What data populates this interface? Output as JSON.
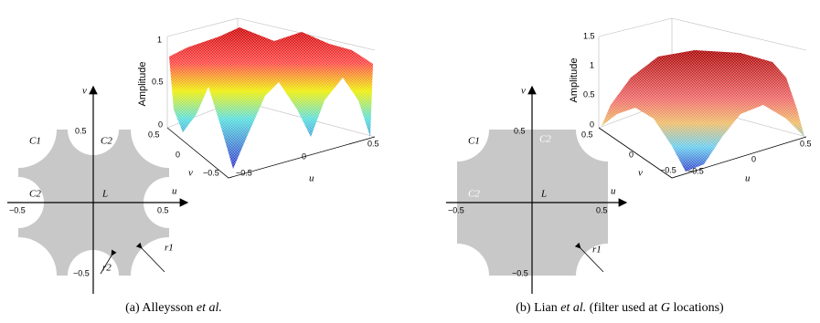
{
  "panels": [
    {
      "caption": {
        "prefix": "(a) Alleysson ",
        "italic": "et al."
      },
      "diagram": {
        "v": "v",
        "v_top": "0.5",
        "c1": "C1",
        "c2_top": "C2",
        "c2_left": "C2",
        "l": "L",
        "u": "u",
        "u_left": "−0.5",
        "u_right": "0.5",
        "v_bottom": "−0.5",
        "r2": "r2",
        "r1": "r1"
      },
      "plot": {
        "z_ticks": [
          "1",
          "0.5",
          "0"
        ],
        "z_label": "Amplitude",
        "v_ticks": [
          "0.5",
          "0",
          "−0.5"
        ],
        "v_label": "v",
        "u_ticks": [
          "−0.5",
          "0",
          "0.5"
        ],
        "u_label": "u"
      }
    },
    {
      "caption": {
        "prefix": "(b) Lian ",
        "italic": "et al.",
        "middle": " (filter used at ",
        "g": "G",
        "suffix": " locations)"
      },
      "diagram": {
        "v": "v",
        "v_top": "0.5",
        "c1": "C1",
        "c2_top": "C2",
        "c2_left": "C2",
        "l": "L",
        "u": "u",
        "u_left": "−0.5",
        "u_right": "0.5",
        "v_bottom": "−0.5",
        "r1": "r1"
      },
      "plot": {
        "z_ticks": [
          "1.5",
          "1",
          "0.5",
          "0"
        ],
        "z_label": "Amplitude",
        "v_ticks": [
          "0.5",
          "0",
          "−0.5"
        ],
        "v_label": "v",
        "u_ticks": [
          "−0.5",
          "0",
          "0.5"
        ],
        "u_label": "u"
      }
    }
  ]
}
